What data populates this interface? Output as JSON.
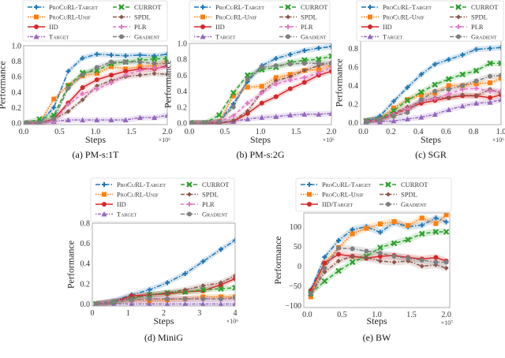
{
  "styles": {
    "ProCuRL-Target": {
      "color": "#1f77b4",
      "marker": "plus",
      "dash": "6,2,1.5,2"
    },
    "ProCuRL-Unif": {
      "color": "#ff7f0e",
      "marker": "square",
      "dash": "1.5,1.5"
    },
    "IID": {
      "color": "#d62728",
      "marker": "circle",
      "dash": ""
    },
    "IID/Target": {
      "color": "#d62728",
      "marker": "circle",
      "dash": ""
    },
    "Target": {
      "color": "#9467bd",
      "marker": "triangle",
      "dash": "1.5,1.5,4,1.5"
    },
    "CURROT": {
      "color": "#2ca02c",
      "marker": "x",
      "dash": "5,3"
    },
    "SPDL": {
      "color": "#8c564b",
      "marker": "diamond",
      "dash": "5,2,1.5,2"
    },
    "PLR": {
      "color": "#e377c2",
      "marker": "plus",
      "dash": "4,3"
    },
    "Gradient": {
      "color": "#7f7f7f",
      "marker": "circle",
      "dash": "5,2,1.5,2"
    }
  },
  "chart_data": [
    {
      "type": "line",
      "caption": "(a) PM-s:1T",
      "xlabel": "Steps",
      "ylabel": "Performance",
      "x_multiplier": "×10⁶",
      "xlim": [
        0,
        2.0
      ],
      "ylim": [
        -0.02,
        1.0
      ],
      "xticks": [
        "0.0",
        "0.5",
        "1.0",
        "1.5",
        "2.0"
      ],
      "xtick_values": [
        0,
        0.5,
        1.0,
        1.5,
        2.0
      ],
      "yticks": [
        "0.0",
        "0.2",
        "0.4",
        "0.6",
        "0.8",
        "1.0"
      ],
      "ytick_values": [
        0,
        0.2,
        0.4,
        0.6,
        0.8,
        1.0
      ],
      "grid": false,
      "legend": "top",
      "x": [
        0.02,
        0.22,
        0.42,
        0.62,
        0.82,
        1.02,
        1.22,
        1.42,
        1.62,
        1.82,
        2.0
      ],
      "series": [
        {
          "name": "ProCuRL-Target",
          "values": [
            0,
            0,
            0.2,
            0.67,
            0.84,
            0.89,
            0.88,
            0.87,
            0.88,
            0.87,
            0.89
          ]
        },
        {
          "name": "ProCuRL-Unif",
          "values": [
            0,
            0,
            0.31,
            0.49,
            0.61,
            0.64,
            0.73,
            0.7,
            0.73,
            0.75,
            0.8
          ]
        },
        {
          "name": "IID",
          "values": [
            0,
            0,
            0.05,
            0.26,
            0.46,
            0.56,
            0.62,
            0.67,
            0.7,
            0.7,
            0.74
          ]
        },
        {
          "name": "Target",
          "values": [
            0,
            0,
            0.02,
            0.04,
            0.04,
            0.04,
            0.04,
            0.04,
            0.07,
            0.07,
            0.1
          ]
        },
        {
          "name": "CURROT",
          "values": [
            0,
            0.05,
            0.1,
            0.48,
            0.65,
            0.68,
            0.77,
            0.79,
            0.81,
            0.83,
            0.83
          ]
        },
        {
          "name": "SPDL",
          "values": [
            0,
            0,
            0.05,
            0.15,
            0.3,
            0.48,
            0.55,
            0.6,
            0.62,
            0.64,
            0.63
          ]
        },
        {
          "name": "PLR",
          "values": [
            0,
            0,
            0.02,
            0.24,
            0.38,
            0.44,
            0.52,
            0.62,
            0.68,
            0.71,
            0.72
          ]
        },
        {
          "name": "Gradient",
          "values": [
            0,
            0,
            0.05,
            0.45,
            0.62,
            0.72,
            0.79,
            0.79,
            0.79,
            0.77,
            0.77
          ]
        }
      ]
    },
    {
      "type": "line",
      "caption": "(b) PM-s:2G",
      "xlabel": "Steps",
      "ylabel": "Performance",
      "x_multiplier": "×10⁶",
      "xlim": [
        0,
        2.0
      ],
      "ylim": [
        -0.02,
        1.0
      ],
      "xticks": [
        "0.0",
        "0.5",
        "1.0",
        "1.5",
        "2.0"
      ],
      "xtick_values": [
        0,
        0.5,
        1.0,
        1.5,
        2.0
      ],
      "yticks": [
        "0.0",
        "0.2",
        "0.4",
        "0.6",
        "0.8",
        "1.0"
      ],
      "ytick_values": [
        0,
        0.2,
        0.4,
        0.6,
        0.8,
        1.0
      ],
      "grid": false,
      "legend": "top",
      "x": [
        0.02,
        0.22,
        0.42,
        0.62,
        0.82,
        1.02,
        1.22,
        1.42,
        1.62,
        1.82,
        2.0
      ],
      "series": [
        {
          "name": "ProCuRL-Target",
          "values": [
            0,
            0,
            0.02,
            0.24,
            0.52,
            0.72,
            0.81,
            0.86,
            0.91,
            0.94,
            0.96
          ]
        },
        {
          "name": "ProCuRL-Unif",
          "values": [
            0,
            0,
            0.02,
            0.34,
            0.45,
            0.46,
            0.57,
            0.61,
            0.66,
            0.67,
            0.72
          ]
        },
        {
          "name": "IID",
          "values": [
            0,
            0,
            0,
            0.02,
            0.12,
            0.25,
            0.33,
            0.43,
            0.51,
            0.6,
            0.65
          ]
        },
        {
          "name": "Target",
          "values": [
            0,
            0,
            0,
            0.02,
            0.05,
            0.07,
            0.08,
            0.1,
            0.11,
            0.11,
            0.12
          ]
        },
        {
          "name": "CURROT",
          "values": [
            0,
            0,
            0.1,
            0.38,
            0.6,
            0.67,
            0.7,
            0.76,
            0.79,
            0.8,
            0.84
          ]
        },
        {
          "name": "SPDL",
          "values": [
            0,
            0,
            0,
            0.03,
            0.15,
            0.39,
            0.53,
            0.58,
            0.66,
            0.72,
            0.76
          ]
        },
        {
          "name": "PLR",
          "values": [
            0,
            0,
            0.02,
            0.09,
            0.25,
            0.38,
            0.49,
            0.54,
            0.57,
            0.63,
            0.7
          ]
        },
        {
          "name": "Gradient",
          "values": [
            0,
            0,
            0.02,
            0.2,
            0.55,
            0.7,
            0.72,
            0.74,
            0.75,
            0.75,
            0.75
          ]
        }
      ]
    },
    {
      "type": "line",
      "caption": "(c) SGR",
      "xlabel": "Steps",
      "ylabel": "Performance",
      "x_multiplier": "×10⁶",
      "xlim": [
        -0.02,
        1.0
      ],
      "ylim": [
        -0.02,
        0.88
      ],
      "xticks": [
        "0.0",
        "0.2",
        "0.4",
        "0.6",
        "0.8",
        "1.0"
      ],
      "xtick_values": [
        0,
        0.2,
        0.4,
        0.6,
        0.8,
        1.0
      ],
      "yticks": [
        "0.0",
        "0.2",
        "0.4",
        "0.6",
        "0.8"
      ],
      "ytick_values": [
        0,
        0.2,
        0.4,
        0.6,
        0.8
      ],
      "grid": false,
      "legend": "top",
      "x": [
        0.02,
        0.12,
        0.22,
        0.32,
        0.42,
        0.52,
        0.62,
        0.72,
        0.82,
        0.92,
        1.0
      ],
      "series": [
        {
          "name": "ProCuRL-Target",
          "values": [
            0.02,
            0.07,
            0.23,
            0.38,
            0.52,
            0.63,
            0.68,
            0.73,
            0.79,
            0.8,
            0.81
          ]
        },
        {
          "name": "ProCuRL-Unif",
          "values": [
            0.02,
            0.04,
            0.16,
            0.25,
            0.3,
            0.32,
            0.4,
            0.4,
            0.42,
            0.43,
            0.48
          ]
        },
        {
          "name": "IID",
          "values": [
            0.02,
            0.03,
            0.09,
            0.15,
            0.21,
            0.24,
            0.27,
            0.29,
            0.29,
            0.27,
            0.3
          ]
        },
        {
          "name": "Target",
          "values": [
            0.01,
            0.01,
            0.02,
            0.04,
            0.06,
            0.09,
            0.14,
            0.18,
            0.21,
            0.22,
            0.25
          ]
        },
        {
          "name": "CURROT",
          "values": [
            0.02,
            0.04,
            0.13,
            0.24,
            0.33,
            0.41,
            0.47,
            0.52,
            0.56,
            0.64,
            0.64
          ]
        },
        {
          "name": "SPDL",
          "values": [
            0.02,
            0.04,
            0.1,
            0.17,
            0.23,
            0.27,
            0.27,
            0.3,
            0.29,
            0.36,
            0.32
          ]
        },
        {
          "name": "PLR",
          "values": [
            0.02,
            0.03,
            0.09,
            0.15,
            0.24,
            0.26,
            0.31,
            0.36,
            0.37,
            0.34,
            0.34
          ]
        },
        {
          "name": "Gradient",
          "values": [
            0.02,
            0.04,
            0.07,
            0.11,
            0.25,
            0.34,
            0.36,
            0.4,
            0.45,
            0.5,
            0.51
          ]
        }
      ]
    },
    {
      "type": "line",
      "caption": "(d) MiniG",
      "xlabel": "Steps",
      "ylabel": "Performance",
      "x_multiplier": "×10⁶",
      "xlim": [
        0,
        4
      ],
      "ylim": [
        -0.02,
        0.8
      ],
      "xticks": [
        "0",
        "1",
        "2",
        "3",
        "4"
      ],
      "xtick_values": [
        0,
        1,
        2,
        3,
        4
      ],
      "yticks": [
        "0.0",
        "0.2",
        "0.4",
        "0.6",
        "0.8"
      ],
      "ytick_values": [
        0,
        0.2,
        0.4,
        0.6,
        0.8
      ],
      "grid": false,
      "legend": "top",
      "x": [
        0.1,
        0.6,
        1.1,
        1.6,
        2.1,
        2.6,
        3.1,
        3.6,
        4.0
      ],
      "series": [
        {
          "name": "ProCuRL-Target",
          "values": [
            0,
            0.03,
            0.09,
            0.14,
            0.21,
            0.3,
            0.42,
            0.54,
            0.63
          ]
        },
        {
          "name": "ProCuRL-Unif",
          "values": [
            0,
            0.02,
            0.04,
            0.03,
            0.04,
            0.05,
            0.07,
            0.07,
            0.07
          ]
        },
        {
          "name": "IID",
          "values": [
            0,
            0.02,
            0.08,
            0.09,
            0.1,
            0.12,
            0.13,
            0.19,
            0.25
          ]
        },
        {
          "name": "Target",
          "values": [
            0,
            0,
            0,
            0,
            0,
            0,
            0,
            0,
            0
          ]
        },
        {
          "name": "CURROT",
          "values": [
            0,
            0.02,
            0.05,
            0.09,
            0.11,
            0.12,
            0.14,
            0.15,
            0.16
          ]
        },
        {
          "name": "SPDL",
          "values": [
            0,
            0.02,
            0.06,
            0.09,
            0.11,
            0.14,
            0.18,
            0.21,
            0.28
          ]
        },
        {
          "name": "PLR",
          "values": [
            0,
            0.03,
            0.04,
            0.05,
            0.05,
            0.05,
            0.05,
            0.05,
            0.05
          ]
        },
        {
          "name": "Gradient",
          "values": [
            0,
            0.02,
            0.04,
            0.05,
            0.05,
            0.05,
            0.05,
            0.05,
            0.06
          ]
        }
      ]
    },
    {
      "type": "line",
      "caption": "(e) BW",
      "xlabel": "Steps",
      "ylabel": "Performance",
      "x_multiplier": "×10⁷",
      "xlim": [
        -0.05,
        2.05
      ],
      "ylim": [
        -105,
        135
      ],
      "xticks": [
        "0.0",
        "0.5",
        "1.0",
        "1.5",
        "2.0"
      ],
      "xtick_values": [
        0,
        0.5,
        1.0,
        1.5,
        2.0
      ],
      "yticks": [
        "−100",
        "−50",
        "0",
        "50",
        "100"
      ],
      "ytick_values": [
        -100,
        -50,
        0,
        50,
        100
      ],
      "grid": false,
      "legend": "top",
      "x": [
        0.05,
        0.25,
        0.45,
        0.65,
        0.85,
        1.05,
        1.25,
        1.45,
        1.65,
        1.85,
        2.0
      ],
      "series": [
        {
          "name": "ProCuRL-Target",
          "values": [
            -60,
            23,
            65,
            93,
            100,
            86,
            110,
            100,
            104,
            122,
            112
          ]
        },
        {
          "name": "ProCuRL-Unif",
          "values": [
            -78,
            8,
            47,
            82,
            96,
            107,
            113,
            103,
            122,
            108,
            130
          ]
        },
        {
          "name": "IID/Target",
          "values": [
            -62,
            8,
            30,
            25,
            20,
            25,
            27,
            22,
            18,
            22,
            13
          ]
        },
        {
          "name": "CURROT",
          "values": [
            -70,
            -38,
            -12,
            10,
            25,
            47,
            58,
            67,
            82,
            87,
            87
          ]
        },
        {
          "name": "SPDL",
          "values": [
            -72,
            -15,
            13,
            25,
            22,
            13,
            10,
            13,
            0,
            3,
            -5
          ]
        },
        {
          "name": "Gradient",
          "values": [
            -70,
            -5,
            46,
            44,
            38,
            33,
            25,
            20,
            15,
            10,
            10
          ]
        }
      ]
    }
  ]
}
